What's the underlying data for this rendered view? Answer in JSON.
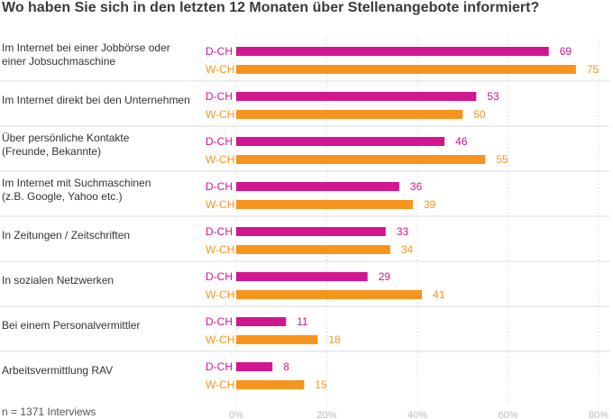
{
  "chart_data": {
    "type": "bar",
    "orientation": "horizontal",
    "title": "Wo haben Sie sich in den letzten 12 Monaten über Stellenangebote informiert?",
    "footnote": "n = 1371 Interviews",
    "categories": [
      [
        "Im Internet bei einer Jobbörse oder",
        "einer Jobsuchmaschine"
      ],
      [
        "Im Internet direkt bei den Unternehmen"
      ],
      [
        "Über persönliche Kontakte",
        "(Freunde, Bekannte)"
      ],
      [
        "Im Internet mit Suchmaschinen",
        "(z.B. Google, Yahoo etc.)"
      ],
      [
        "In Zeitungen / Zeitschriften"
      ],
      [
        "In sozialen Netzwerken"
      ],
      [
        "Bei einem Personalvermittler"
      ],
      [
        "Arbeitsvermittlung RAV"
      ]
    ],
    "series": [
      {
        "name": "D-CH",
        "color": "#d2168f",
        "values": [
          69,
          53,
          46,
          36,
          33,
          29,
          11,
          8
        ]
      },
      {
        "name": "W-CH",
        "color": "#f7941d",
        "values": [
          75,
          50,
          55,
          39,
          34,
          41,
          18,
          15
        ]
      }
    ],
    "xlim": [
      0,
      80
    ],
    "xticks": [
      0,
      20,
      40,
      60,
      80
    ],
    "xtick_labels": [
      "0%",
      "20%",
      "40%",
      "60%",
      "80%"
    ],
    "grid": true,
    "legend": "none"
  }
}
